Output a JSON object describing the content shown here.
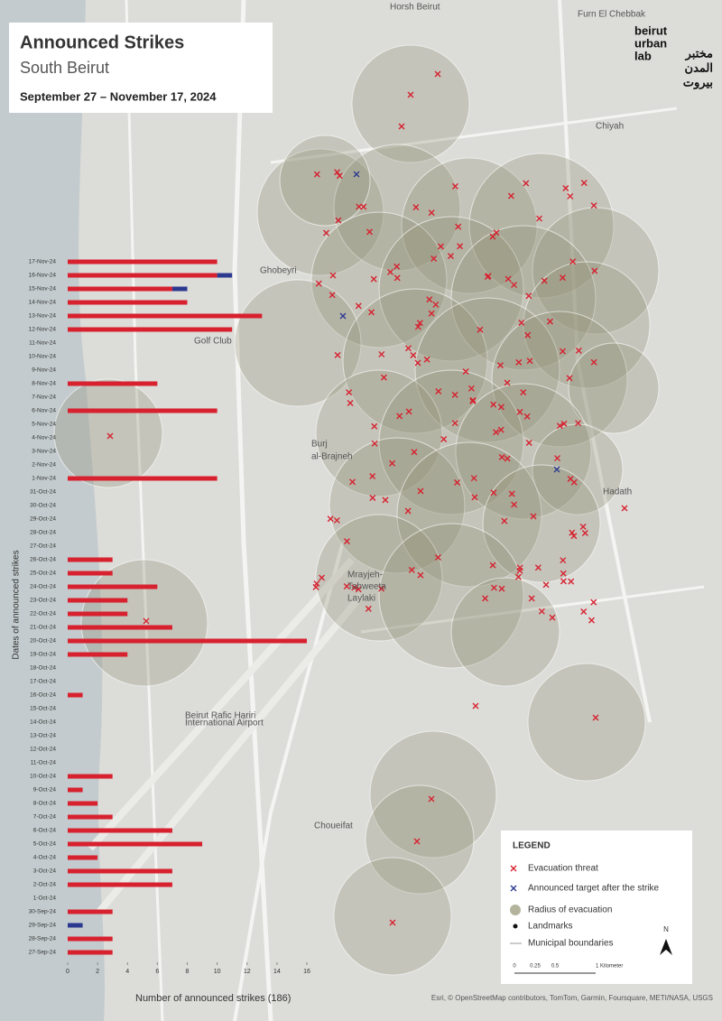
{
  "header": {
    "title": "Announced  Strikes",
    "subtitle": "South Beirut",
    "dates": "September 27 – November 17, 2024"
  },
  "logo": {
    "latin": [
      "beirut",
      "urban",
      "lab"
    ],
    "arabic": [
      "مختبر",
      "المدن",
      "بيروت"
    ]
  },
  "places": {
    "furn": "Furn El Chebbak",
    "chiyah": "Chiyah",
    "ghobeyri": "Ghobeyri",
    "burj": [
      "Burj",
      "al-Brajneh"
    ],
    "hadath": "Hadath",
    "mrayjeh": [
      "Mrayjeh-",
      "Tahweeta",
      "Laylaki"
    ],
    "choueifat": "Choueifat",
    "golf": "Golf Club",
    "airport": [
      "Beirut Rafic Hariri",
      "International Airport"
    ],
    "horsh": "Horsh Beirut"
  },
  "chart_data": {
    "type": "bar",
    "orientation": "horizontal",
    "stacked": true,
    "categories": [
      "17-Nov-24",
      "16-Nov-24",
      "15-Nov-24",
      "14-Nov-24",
      "13-Nov-24",
      "12-Nov-24",
      "11-Nov-24",
      "10-Nov-24",
      "9-Nov-24",
      "8-Nov-24",
      "7-Nov-24",
      "6-Nov-24",
      "5-Nov-24",
      "4-Nov-24",
      "3-Nov-24",
      "2-Nov-24",
      "1-Nov-24",
      "31-Oct-24",
      "30-Oct-24",
      "29-Oct-24",
      "28-Oct-24",
      "27-Oct-24",
      "26-Oct-24",
      "25-Oct-24",
      "24-Oct-24",
      "23-Oct-24",
      "22-Oct-24",
      "21-Oct-24",
      "20-Oct-24",
      "19-Oct-24",
      "18-Oct-24",
      "17-Oct-24",
      "16-Oct-24",
      "15-Oct-24",
      "14-Oct-24",
      "13-Oct-24",
      "12-Oct-24",
      "11-Oct-24",
      "10-Oct-24",
      "9-Oct-24",
      "8-Oct-24",
      "7-Oct-24",
      "6-Oct-24",
      "5-Oct-24",
      "4-Oct-24",
      "3-Oct-24",
      "2-Oct-24",
      "1-Oct-24",
      "30-Sep-24",
      "29-Sep-24",
      "28-Sep-24",
      "27-Sep-24"
    ],
    "series": [
      {
        "name": "Evacuation threat",
        "color": "#d7212f",
        "values": [
          10,
          10,
          7,
          8,
          13,
          11,
          0,
          0,
          0,
          6,
          0,
          10,
          0,
          0,
          0,
          0,
          10,
          0,
          0,
          0,
          0,
          0,
          3,
          3,
          6,
          4,
          4,
          7,
          16,
          4,
          0,
          0,
          1,
          0,
          0,
          0,
          0,
          0,
          3,
          1,
          2,
          3,
          7,
          9,
          2,
          7,
          7,
          0,
          3,
          0,
          3,
          3
        ]
      },
      {
        "name": "Announced target after the strike",
        "color": "#2b3990",
        "values": [
          0,
          1,
          1,
          0,
          0,
          0,
          0,
          0,
          0,
          0,
          0,
          0,
          0,
          0,
          0,
          0,
          0,
          0,
          0,
          0,
          0,
          0,
          0,
          0,
          0,
          0,
          0,
          0,
          0,
          0,
          0,
          0,
          0,
          0,
          0,
          0,
          0,
          0,
          0,
          0,
          0,
          0,
          0,
          0,
          0,
          0,
          0,
          0,
          0,
          1,
          0,
          0
        ]
      }
    ],
    "xlim": [
      0,
      16
    ],
    "xticks": [
      0,
      2,
      4,
      6,
      8,
      10,
      12,
      14,
      16
    ],
    "xlabel": "Number of announced strikes  (186)",
    "ylabel": "Dates of announced strikes"
  },
  "legend": {
    "title": "LEGEND",
    "radius": "Radius of evacuation",
    "landmarks": "Landmarks",
    "boundaries": "Municipal boundaries",
    "north": "N",
    "scale": [
      "0",
      "0.25",
      "0.5",
      "1 Kilometer"
    ]
  },
  "attribution": "Esri, © OpenStreetMap contributors, TomTom, Garmin, Foursquare, METI/NASA, USGS"
}
